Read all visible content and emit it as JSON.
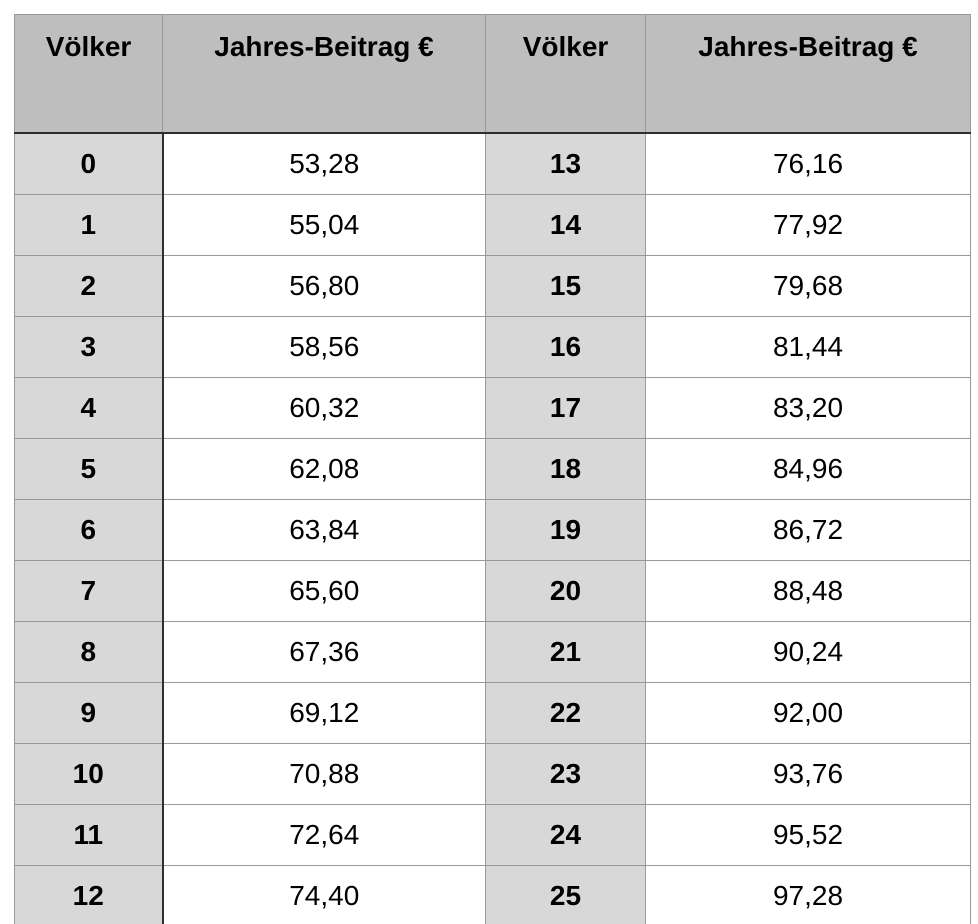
{
  "colors": {
    "header_bg": "#bebebe",
    "label_column_bg": "#d8d8d8",
    "value_column_bg": "#ffffff",
    "grid_line": "#999999",
    "dark_line": "#2e2e2e",
    "text": "#000000",
    "page_bg": "#ffffff"
  },
  "table": {
    "headers": [
      "Völker",
      "Jahres-Beitrag €",
      "Völker",
      "Jahres-Beitrag €"
    ],
    "rows": [
      {
        "voelker_left": "0",
        "beitrag_left": "53,28",
        "voelker_right": "13",
        "beitrag_right": "76,16"
      },
      {
        "voelker_left": "1",
        "beitrag_left": "55,04",
        "voelker_right": "14",
        "beitrag_right": "77,92"
      },
      {
        "voelker_left": "2",
        "beitrag_left": "56,80",
        "voelker_right": "15",
        "beitrag_right": "79,68"
      },
      {
        "voelker_left": "3",
        "beitrag_left": "58,56",
        "voelker_right": "16",
        "beitrag_right": "81,44"
      },
      {
        "voelker_left": "4",
        "beitrag_left": "60,32",
        "voelker_right": "17",
        "beitrag_right": "83,20"
      },
      {
        "voelker_left": "5",
        "beitrag_left": "62,08",
        "voelker_right": "18",
        "beitrag_right": "84,96"
      },
      {
        "voelker_left": "6",
        "beitrag_left": "63,84",
        "voelker_right": "19",
        "beitrag_right": "86,72"
      },
      {
        "voelker_left": "7",
        "beitrag_left": "65,60",
        "voelker_right": "20",
        "beitrag_right": "88,48"
      },
      {
        "voelker_left": "8",
        "beitrag_left": "67,36",
        "voelker_right": "21",
        "beitrag_right": "90,24"
      },
      {
        "voelker_left": "9",
        "beitrag_left": "69,12",
        "voelker_right": "22",
        "beitrag_right": "92,00"
      },
      {
        "voelker_left": "10",
        "beitrag_left": "70,88",
        "voelker_right": "23",
        "beitrag_right": "93,76"
      },
      {
        "voelker_left": "11",
        "beitrag_left": "72,64",
        "voelker_right": "24",
        "beitrag_right": "95,52"
      },
      {
        "voelker_left": "12",
        "beitrag_left": "74,40",
        "voelker_right": "25",
        "beitrag_right": "97,28"
      }
    ]
  }
}
